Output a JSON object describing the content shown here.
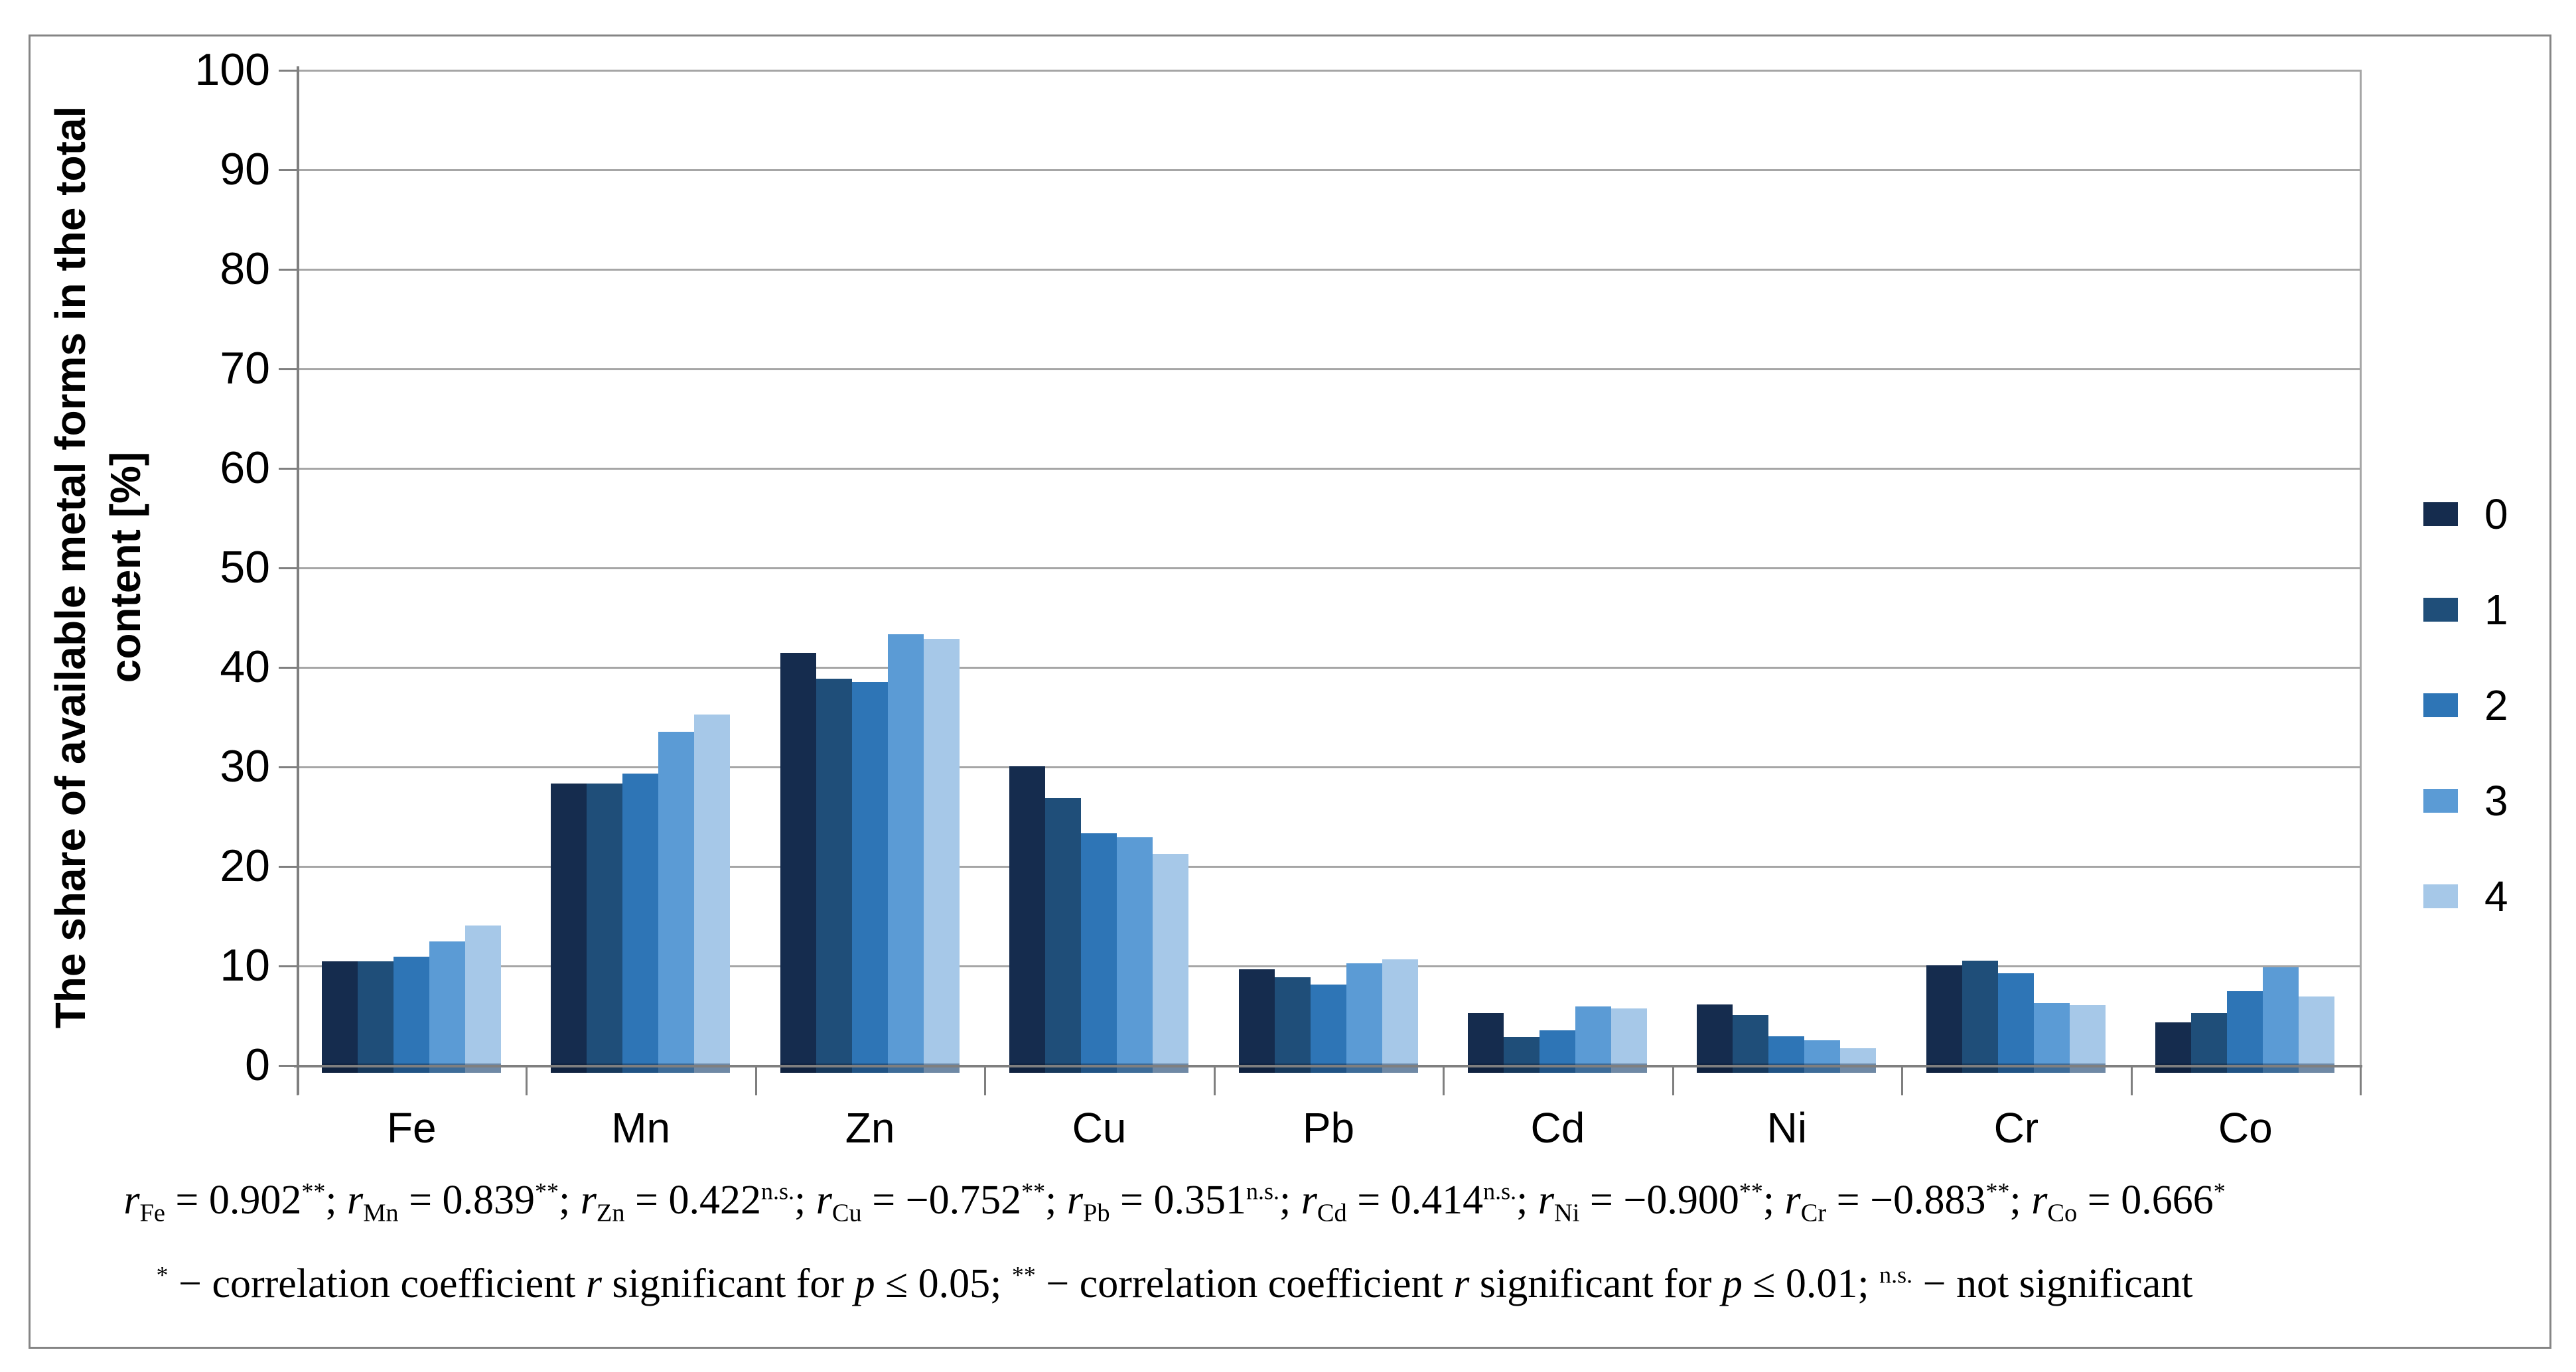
{
  "figure": {
    "y_axis_title_line1": "The share of available metal forms in the total",
    "y_axis_title_line2": "content [%]"
  },
  "chart_data": {
    "type": "bar",
    "title": "",
    "xlabel": "",
    "ylabel": "The share of available metal forms in the total content [%]",
    "ylim": [
      0,
      100
    ],
    "ytick_step": 10,
    "yticks": [
      0,
      10,
      20,
      30,
      40,
      50,
      60,
      70,
      80,
      90,
      100
    ],
    "grid": true,
    "legend_position": "right",
    "categories": [
      "Fe",
      "Mn",
      "Zn",
      "Cu",
      "Pb",
      "Cd",
      "Ni",
      "Cr",
      "Co"
    ],
    "series": [
      {
        "name": "0",
        "color": "#152c4e",
        "values": [
          10.4,
          28.3,
          41.4,
          30.0,
          9.6,
          5.2,
          6.1,
          10.0,
          4.3
        ]
      },
      {
        "name": "1",
        "color": "#1f4e79",
        "values": [
          10.4,
          28.3,
          38.8,
          26.8,
          8.8,
          2.8,
          5.0,
          10.5,
          5.2
        ]
      },
      {
        "name": "2",
        "color": "#2e75b6",
        "values": [
          10.9,
          29.3,
          38.5,
          23.3,
          8.1,
          3.5,
          2.9,
          9.2,
          7.4
        ]
      },
      {
        "name": "3",
        "color": "#5b9bd5",
        "values": [
          12.4,
          33.5,
          43.3,
          22.9,
          10.2,
          5.9,
          2.5,
          6.2,
          9.8
        ]
      },
      {
        "name": "4",
        "color": "#a6c8e8",
        "values": [
          14.0,
          35.2,
          42.8,
          21.2,
          10.6,
          5.7,
          1.7,
          6.0,
          6.9
        ]
      }
    ]
  },
  "footnotes": {
    "line1": [
      {
        "metal": "Fe",
        "value": "0.902",
        "sig": "**"
      },
      {
        "metal": "Mn",
        "value": "0.839",
        "sig": "**"
      },
      {
        "metal": "Zn",
        "value": "0.422",
        "sig": "n.s."
      },
      {
        "metal": "Cu",
        "value": "−0.752",
        "sig": "**"
      },
      {
        "metal": "Pb",
        "value": "0.351",
        "sig": "n.s."
      },
      {
        "metal": "Cd",
        "value": "0.414",
        "sig": "n.s."
      },
      {
        "metal": "Ni",
        "value": "−0.900",
        "sig": "**"
      },
      {
        "metal": "Cr",
        "value": "−0.883",
        "sig": "**"
      },
      {
        "metal": "Co",
        "value": "0.666",
        "sig": "*"
      }
    ],
    "line1_r_symbol": "r",
    "line1_equals": " = ",
    "line1_separator": "; ",
    "line2_tokens": [
      {
        "t": "sup",
        "v": "*"
      },
      {
        "t": "text",
        "v": " − correlation coefficient "
      },
      {
        "t": "i",
        "v": "r"
      },
      {
        "t": "text",
        "v": " significant for "
      },
      {
        "t": "i",
        "v": "p"
      },
      {
        "t": "text",
        "v": " ≤ 0.05; "
      },
      {
        "t": "sup",
        "v": "**"
      },
      {
        "t": "text",
        "v": " − correlation coefficient "
      },
      {
        "t": "i",
        "v": "r"
      },
      {
        "t": "text",
        "v": " significant for "
      },
      {
        "t": "i",
        "v": "p"
      },
      {
        "t": "text",
        "v": " ≤ 0.01; "
      },
      {
        "t": "sup",
        "v": "n.s."
      },
      {
        "t": "text",
        "v": " − not significant"
      }
    ]
  },
  "colors": {
    "gridline": "#a6a6a6",
    "axis": "#7f7f7f",
    "frame": "#858585",
    "text": "#000000"
  }
}
